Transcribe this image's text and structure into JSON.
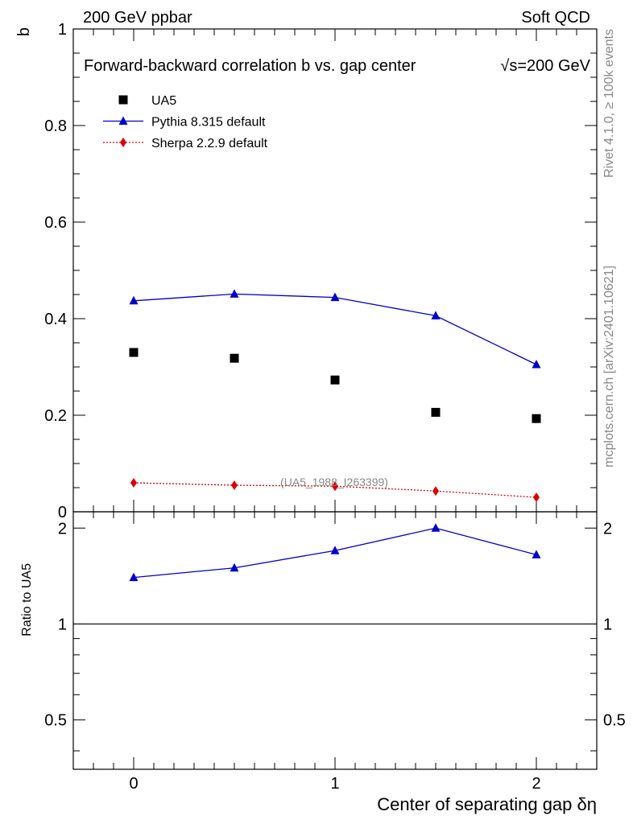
{
  "header": {
    "left": "200 GeV ppbar",
    "right": "Soft QCD"
  },
  "side_text": {
    "top": "Rivet 4.1.0, ≥ 100k events",
    "bottom": "mcplots.cern.ch [arXiv:2401.10621]"
  },
  "colors": {
    "data": "#000000",
    "pythia": "#0000cc",
    "sherpa": "#dd0000",
    "ref_text": "#888888"
  },
  "chart_data": [
    {
      "type": "scatter",
      "panel": "main",
      "title": "Forward-backward correlation b  vs. gap center",
      "title_suffix": "√s=200 GeV",
      "ylabel": "b",
      "xlabel": "",
      "xlim": [
        -0.3,
        2.3
      ],
      "ylim": [
        0,
        1
      ],
      "y_ticks": [
        {
          "value": 0,
          "label": "0"
        },
        {
          "value": 0.2,
          "label": "0.2"
        },
        {
          "value": 0.4,
          "label": "0.4"
        },
        {
          "value": 0.6,
          "label": "0.6"
        },
        {
          "value": 0.8,
          "label": "0.8"
        },
        {
          "value": 1,
          "label": "1"
        }
      ],
      "legend_position": "top-left",
      "reference_label": "(UA5_1988_I263399)",
      "x": [
        0,
        0.5,
        1,
        1.5,
        2
      ],
      "series": [
        {
          "key": "ua5",
          "name": "UA5",
          "marker": "square",
          "line": "none",
          "values": [
            0.33,
            0.318,
            0.273,
            0.206,
            0.193
          ]
        },
        {
          "key": "pythia",
          "name": "Pythia 8.315 default",
          "marker": "triangle",
          "line": "solid",
          "values": [
            0.437,
            0.451,
            0.444,
            0.406,
            0.305
          ]
        },
        {
          "key": "sherpa",
          "name": "Sherpa 2.2.9 default",
          "marker": "diamond",
          "line": "dotted",
          "values": [
            0.06,
            0.055,
            0.053,
            0.043,
            0.03
          ]
        }
      ]
    },
    {
      "type": "line",
      "panel": "ratio",
      "ylabel": "Ratio to UA5",
      "xlabel": "Center of separating gap δη",
      "xlim": [
        -0.3,
        2.3
      ],
      "ylim": [
        0.35,
        2.25
      ],
      "scale": "log",
      "reference_line": 1,
      "x_ticks": [
        {
          "value": 0,
          "label": "0"
        },
        {
          "value": 1,
          "label": "1"
        },
        {
          "value": 2,
          "label": "2"
        }
      ],
      "y_ticks": [
        {
          "value": 0.5,
          "label": "0.5"
        },
        {
          "value": 1,
          "label": "1"
        },
        {
          "value": 2,
          "label": "2"
        }
      ],
      "x": [
        0,
        0.5,
        1,
        1.5,
        2
      ],
      "series": [
        {
          "key": "pythia",
          "name": "Pythia 8.315 default",
          "values": [
            1.4,
            1.5,
            1.7,
            2.0,
            1.65
          ]
        }
      ]
    }
  ]
}
